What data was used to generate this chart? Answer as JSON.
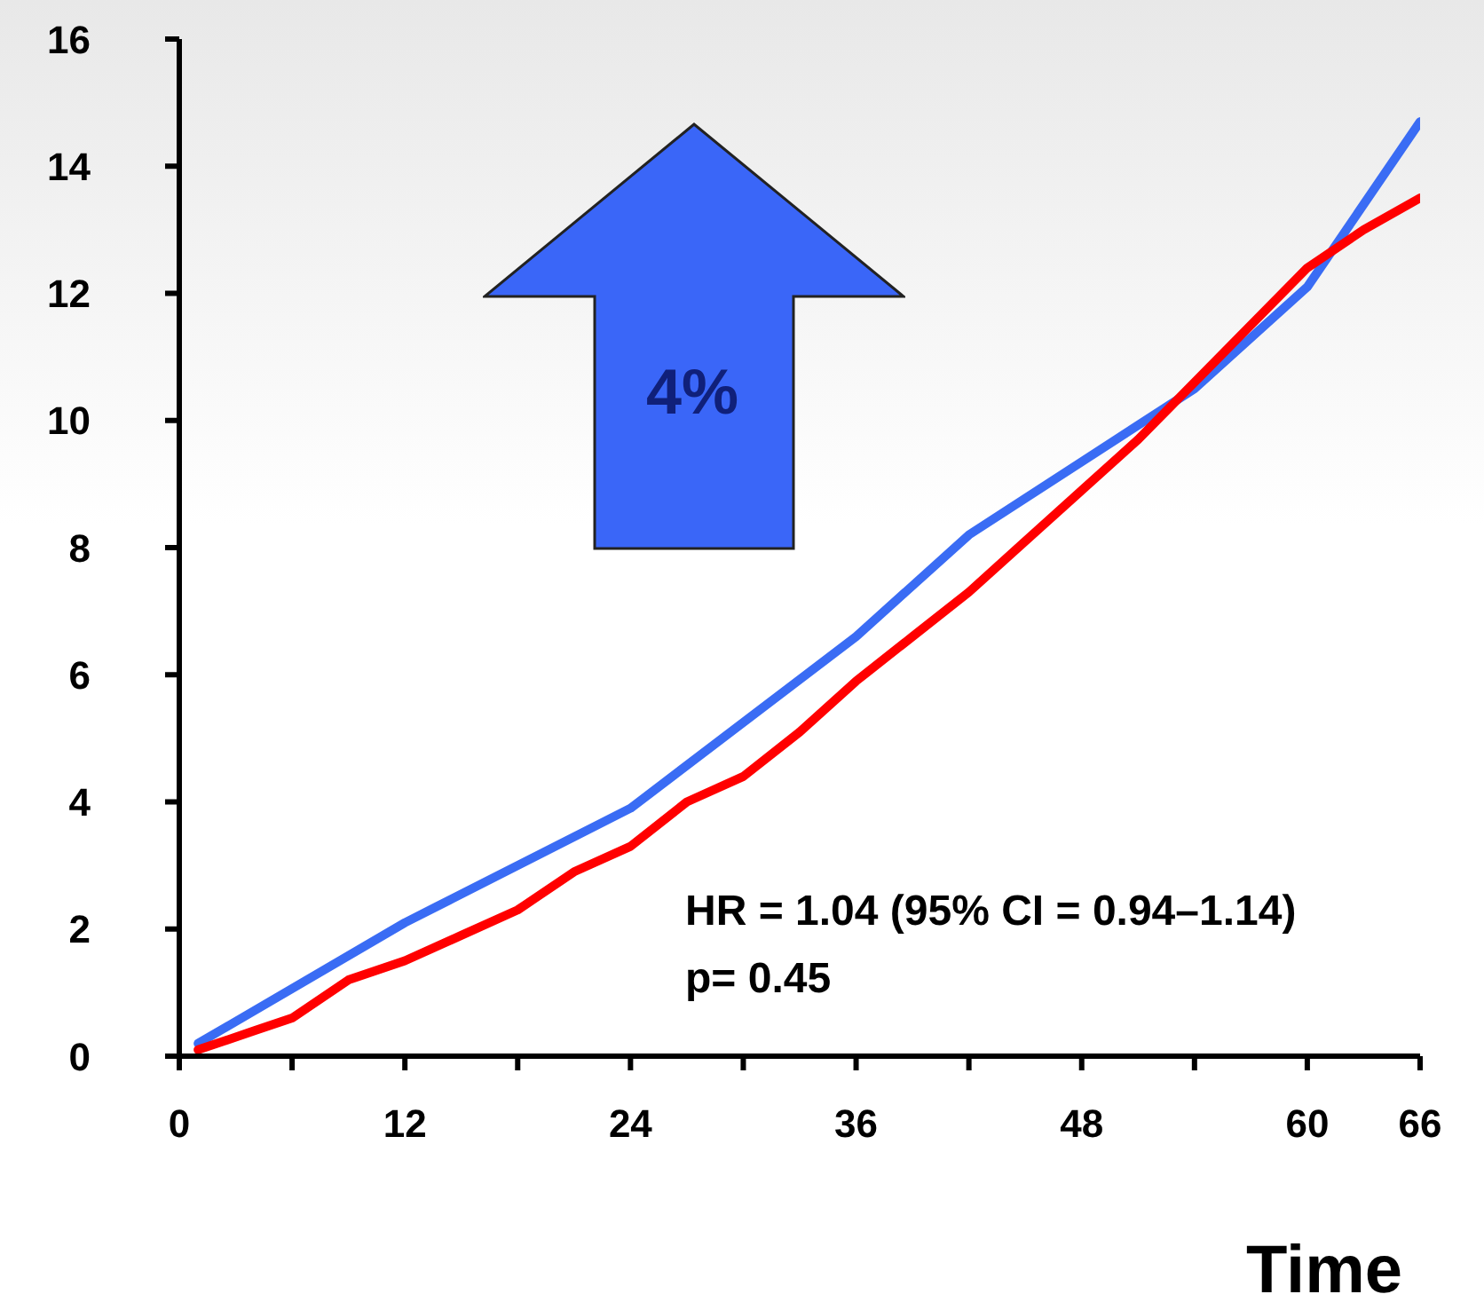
{
  "chart_data": {
    "type": "line",
    "xlabel": "Time",
    "annotations": [
      "4%",
      "HR = 1.04 (95% CI = 0.94–1.14)",
      "p= 0.45"
    ],
    "xlim": [
      0,
      66
    ],
    "ylim": [
      0,
      16
    ],
    "xticks": [
      0,
      {
        "value": 6,
        "label": null
      },
      12,
      {
        "value": 18,
        "label": null
      },
      24,
      {
        "value": 30,
        "label": null
      },
      36,
      {
        "value": 42,
        "label": null
      },
      48,
      {
        "value": 54,
        "label": null
      },
      60,
      66
    ],
    "yticks": [
      0,
      2,
      4,
      6,
      8,
      10,
      12,
      14,
      16
    ],
    "grid": false,
    "legend": false,
    "marker": "none",
    "line_style": "solid",
    "series": [
      {
        "color": "#3a6cf4",
        "x": [
          1,
          12,
          24,
          36,
          42,
          54,
          60,
          66
        ],
        "values": [
          0.2,
          2.1,
          3.9,
          6.6,
          8.2,
          10.5,
          12.1,
          14.7
        ]
      },
      {
        "color": "#ff0000",
        "x": [
          1,
          4,
          6,
          9,
          12,
          15,
          18,
          21,
          24,
          27,
          30,
          33,
          36,
          39,
          42,
          45,
          48,
          51,
          54,
          57,
          60,
          63,
          66
        ],
        "values": [
          0.1,
          0.4,
          0.6,
          1.2,
          1.5,
          1.9,
          2.3,
          2.9,
          3.3,
          4.0,
          4.4,
          5.1,
          5.9,
          6.6,
          7.3,
          8.1,
          8.9,
          9.7,
          10.6,
          11.5,
          12.4,
          13.0,
          13.5
        ]
      }
    ]
  }
}
